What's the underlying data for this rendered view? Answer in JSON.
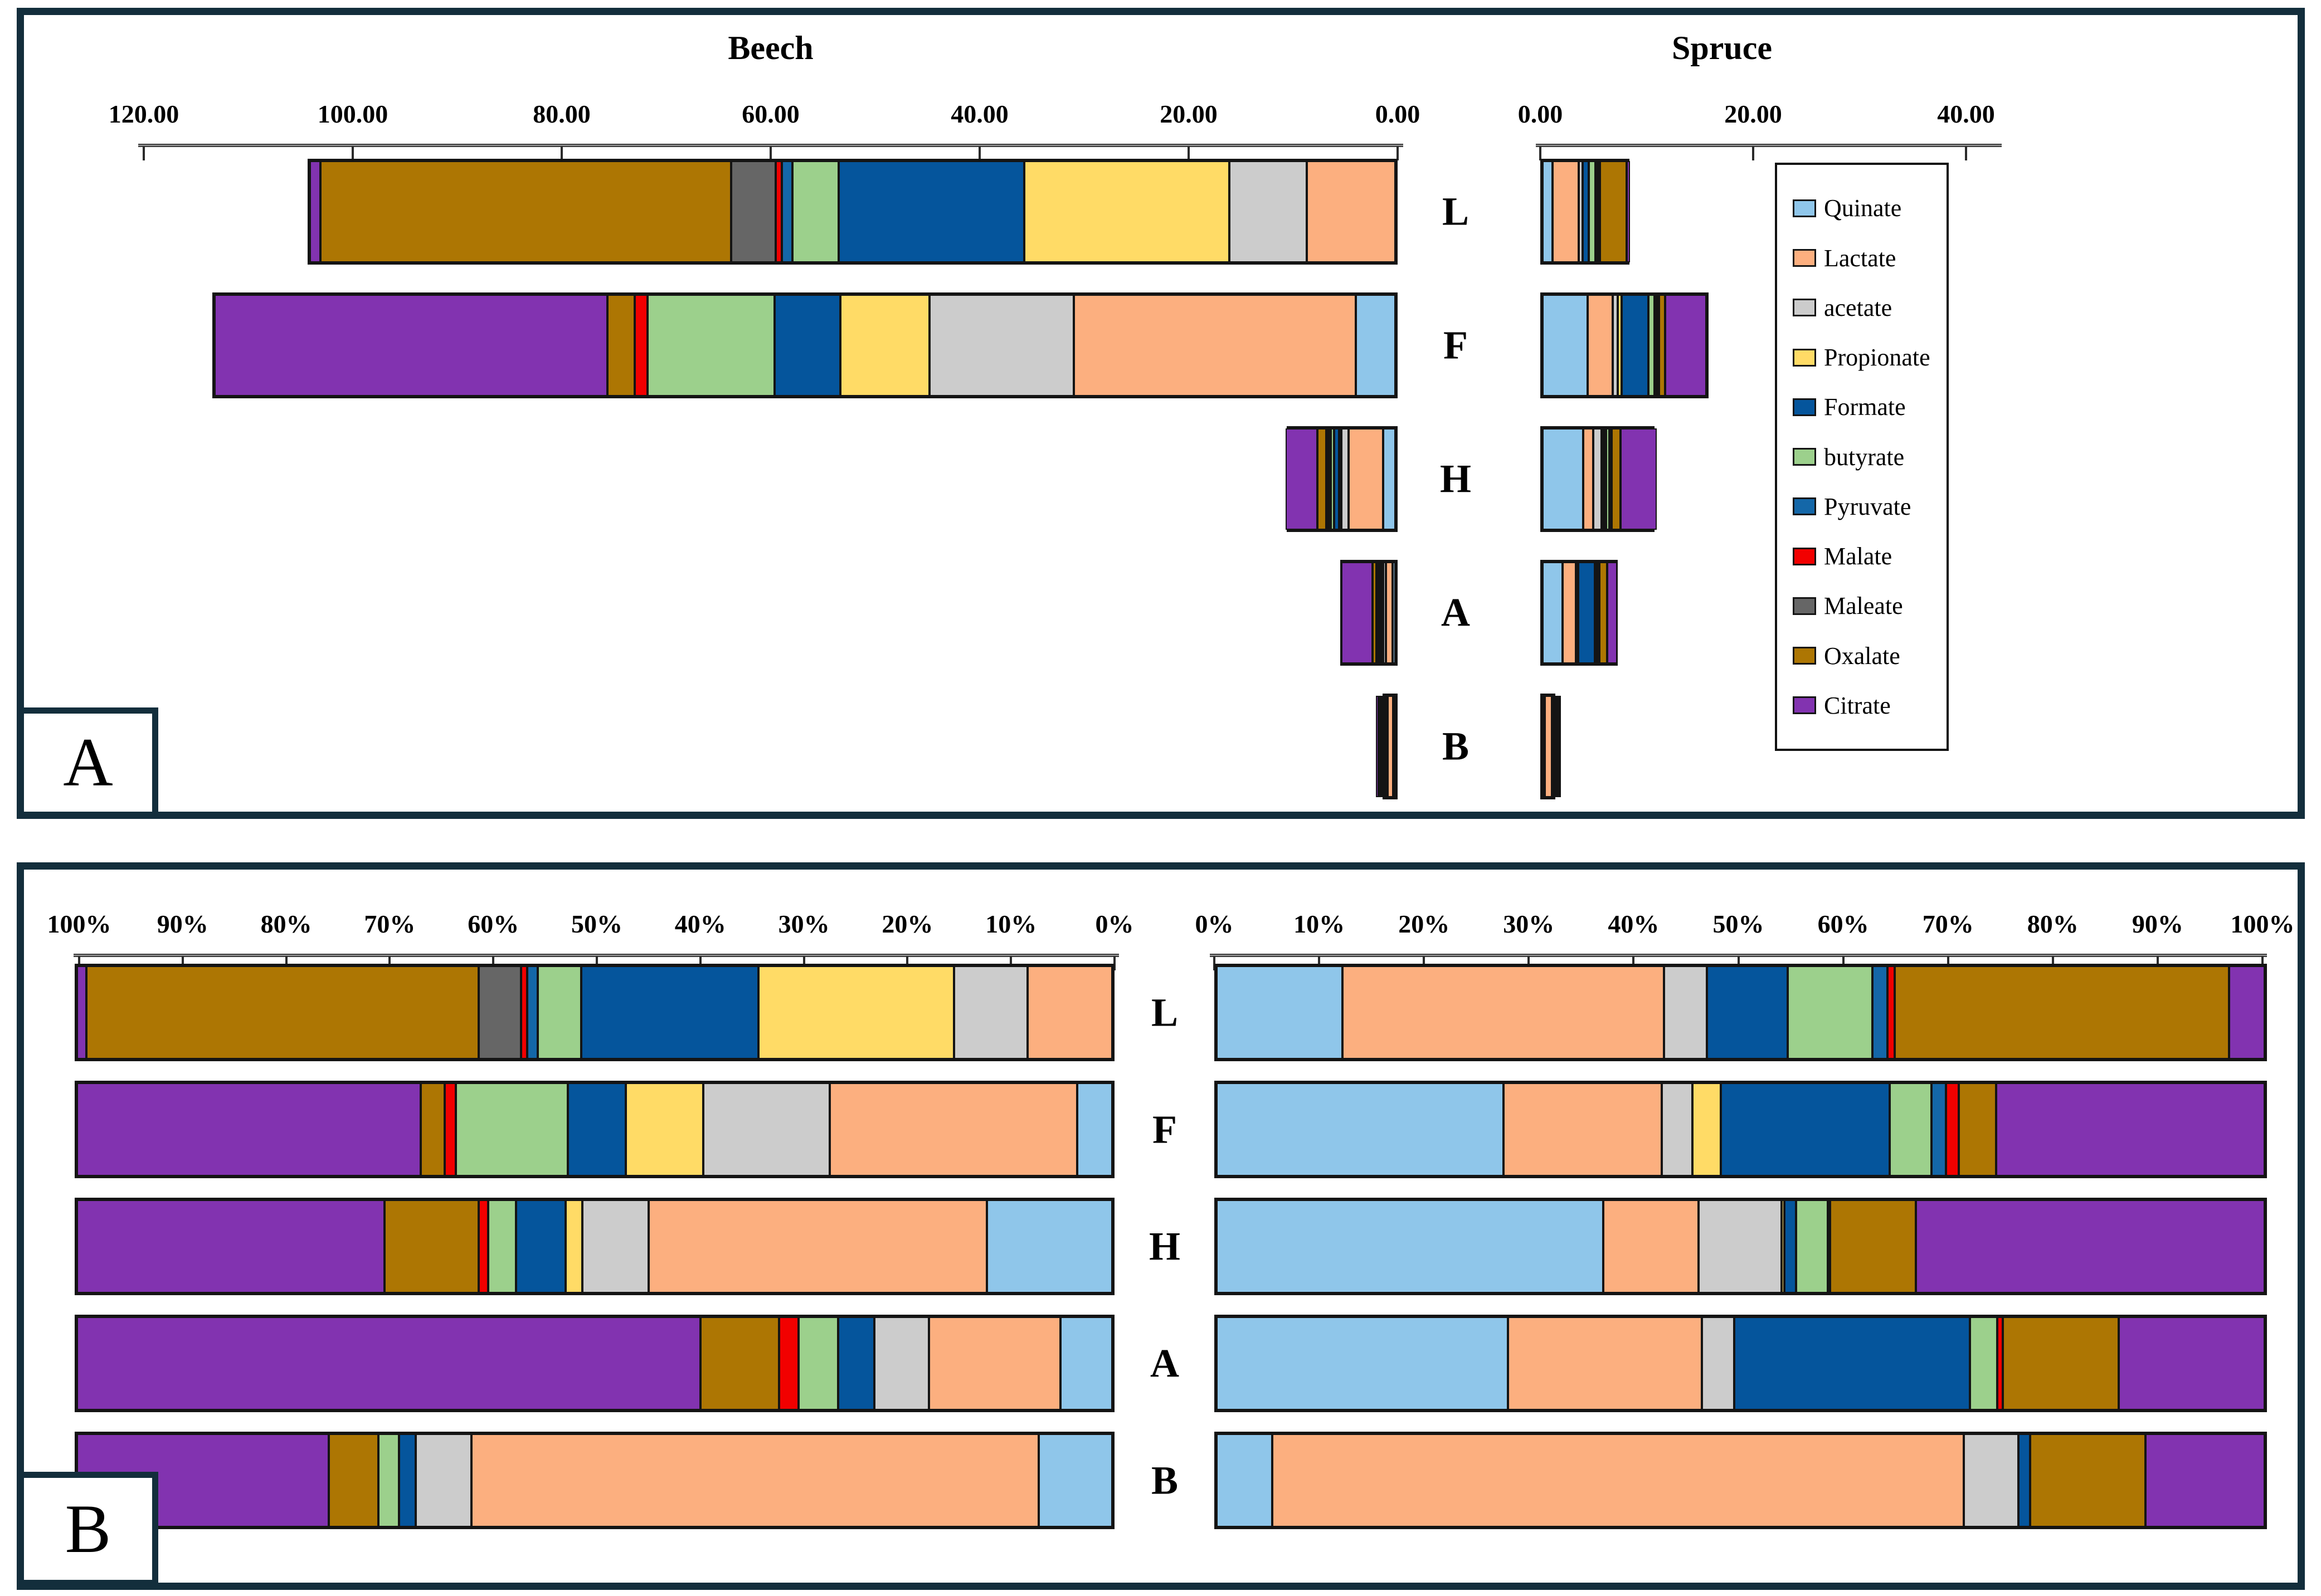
{
  "figure": {
    "panel_a_label": "A",
    "panel_b_label": "B",
    "beech_title": "Beech",
    "spruce_title": "Spruce"
  },
  "horizons": [
    "L",
    "F",
    "H",
    "A",
    "B"
  ],
  "series_order": [
    "Quinate",
    "Lactate",
    "acetate",
    "Propionate",
    "Formate",
    "butyrate",
    "Pyruvate",
    "Malate",
    "Maleate",
    "Oxalate",
    "Citrate"
  ],
  "colors": {
    "Quinate": "#8FC6EA",
    "Lactate": "#FCAF7F",
    "acetate": "#CCCCCC",
    "Propionate": "#FFDB66",
    "Formate": "#05559C",
    "butyrate": "#9CD08C",
    "Pyruvate": "#1467A8",
    "Malate": "#F20000",
    "Maleate": "#666666",
    "Oxalate": "#AD7603",
    "Citrate": "#8233B0"
  },
  "legend": {
    "items": [
      {
        "label": "Quinate",
        "color": "#8FC6EA"
      },
      {
        "label": "Lactate",
        "color": "#FCAF7F"
      },
      {
        "label": "acetate",
        "color": "#CCCCCC"
      },
      {
        "label": "Propionate",
        "color": "#FFDB66"
      },
      {
        "label": "Formate",
        "color": "#05559C"
      },
      {
        "label": "butyrate",
        "color": "#9CD08C"
      },
      {
        "label": "Pyruvate",
        "color": "#1467A8"
      },
      {
        "label": "Malate",
        "color": "#F20000"
      },
      {
        "label": "Maleate",
        "color": "#666666"
      },
      {
        "label": "Oxalate",
        "color": "#AD7603"
      },
      {
        "label": "Citrate",
        "color": "#8233B0"
      }
    ]
  },
  "axes": {
    "panel_a_beech_ticks": [
      "120.00",
      "100.00",
      "80.00",
      "60.00",
      "40.00",
      "20.00",
      "0.00"
    ],
    "panel_a_spruce_ticks": [
      "0.00",
      "20.00",
      "40.00"
    ],
    "panel_b_beech_ticks": [
      "100%",
      "90%",
      "80%",
      "70%",
      "60%",
      "50%",
      "40%",
      "30%",
      "20%",
      "10%",
      "0%"
    ],
    "panel_b_spruce_ticks": [
      "0%",
      "10%",
      "20%",
      "30%",
      "40%",
      "50%",
      "60%",
      "70%",
      "80%",
      "90%",
      "100%"
    ]
  },
  "chart_data": [
    {
      "id": "panel_a_beech",
      "type": "bar",
      "stacked": true,
      "orientation": "horizontal",
      "title": "Beech",
      "axis_reversed": true,
      "xlim": [
        0,
        120
      ],
      "tick_values": [
        120,
        100,
        80,
        60,
        40,
        20,
        0
      ],
      "categories": [
        "L",
        "F",
        "H",
        "A",
        "B"
      ],
      "series": [
        {
          "name": "Quinate",
          "values": [
            0,
            3.8,
            1.2,
            0.25,
            0.05
          ]
        },
        {
          "name": "Lactate",
          "values": [
            8.5,
            27.0,
            3.3,
            0.65,
            0.55
          ]
        },
        {
          "name": "acetate",
          "values": [
            7.4,
            13.8,
            0.65,
            0.25,
            0.05
          ]
        },
        {
          "name": "Propionate",
          "values": [
            19.6,
            8.5,
            0.15,
            0,
            0
          ]
        },
        {
          "name": "Formate",
          "values": [
            17.8,
            6.3,
            0.5,
            0.2,
            0.02
          ]
        },
        {
          "name": "butyrate",
          "values": [
            4.4,
            12.2,
            0.3,
            0.2,
            0.02
          ]
        },
        {
          "name": "Pyruvate",
          "values": [
            1.0,
            0,
            0.1,
            0,
            0
          ]
        },
        {
          "name": "Malate",
          "values": [
            0.6,
            1.2,
            0.1,
            0.1,
            0
          ]
        },
        {
          "name": "Maleate",
          "values": [
            4.3,
            0,
            0,
            0,
            0
          ]
        },
        {
          "name": "Oxalate",
          "values": [
            39.3,
            2.6,
            0.9,
            0.4,
            0.06
          ]
        },
        {
          "name": "Citrate",
          "values": [
            1.0,
            37.6,
            3.0,
            3.0,
            0.25
          ]
        }
      ]
    },
    {
      "id": "panel_a_spruce",
      "type": "bar",
      "stacked": true,
      "orientation": "horizontal",
      "title": "Spruce",
      "axis_reversed": false,
      "xlim": [
        0,
        40
      ],
      "tick_values": [
        0,
        20,
        40
      ],
      "categories": [
        "L",
        "F",
        "H",
        "A",
        "B"
      ],
      "series": [
        {
          "name": "Quinate",
          "values": [
            0.95,
            4.25,
            3.8,
            1.9,
            0.05
          ]
        },
        {
          "name": "Lactate",
          "values": [
            2.45,
            2.35,
            0.95,
            1.25,
            0.66
          ]
        },
        {
          "name": "acetate",
          "values": [
            0.35,
            0.45,
            0.8,
            0.2,
            0.05
          ]
        },
        {
          "name": "Propionate",
          "values": [
            0,
            0.4,
            0.05,
            0,
            0
          ]
        },
        {
          "name": "Formate",
          "values": [
            0.6,
            2.5,
            0.1,
            1.55,
            0.02
          ]
        },
        {
          "name": "butyrate",
          "values": [
            0.65,
            0.6,
            0.3,
            0.2,
            0
          ]
        },
        {
          "name": "Pyruvate",
          "values": [
            0.1,
            0.2,
            0,
            0,
            0
          ]
        },
        {
          "name": "Malate",
          "values": [
            0.05,
            0.2,
            0.05,
            0.05,
            0
          ]
        },
        {
          "name": "Maleate",
          "values": [
            0,
            0,
            0,
            0,
            0
          ]
        },
        {
          "name": "Oxalate",
          "values": [
            2.5,
            0.55,
            0.85,
            0.75,
            0.1
          ]
        },
        {
          "name": "Citrate",
          "values": [
            0.3,
            3.9,
            3.4,
            0.95,
            0.12
          ]
        }
      ]
    },
    {
      "id": "panel_b_beech",
      "type": "bar",
      "stacked": true,
      "orientation": "horizontal",
      "title": "Beech (%)",
      "axis_reversed": true,
      "xlim": [
        0,
        100
      ],
      "tick_values": [
        100,
        90,
        80,
        70,
        60,
        50,
        40,
        30,
        20,
        10,
        0
      ],
      "categories": [
        "L",
        "F",
        "H",
        "A",
        "B"
      ],
      "series": [
        {
          "name": "Quinate",
          "values": [
            0,
            3.4,
            12.1,
            5.0,
            7.1
          ]
        },
        {
          "name": "Lactate",
          "values": [
            8.2,
            23.9,
            32.7,
            12.7,
            54.8
          ]
        },
        {
          "name": "acetate",
          "values": [
            7.1,
            12.2,
            6.4,
            5.3,
            5.4
          ]
        },
        {
          "name": "Propionate",
          "values": [
            18.9,
            7.5,
            1.6,
            0,
            0
          ]
        },
        {
          "name": "Formate",
          "values": [
            17.1,
            5.6,
            4.8,
            3.5,
            1.6
          ]
        },
        {
          "name": "butyrate",
          "values": [
            4.2,
            10.8,
            2.7,
            3.8,
            2.0
          ]
        },
        {
          "name": "Pyruvate",
          "values": [
            1.0,
            0,
            0,
            0,
            0
          ]
        },
        {
          "name": "Malate",
          "values": [
            0.6,
            1.1,
            0.9,
            1.9,
            0
          ]
        },
        {
          "name": "Maleate",
          "values": [
            4.1,
            0,
            0,
            0,
            0
          ]
        },
        {
          "name": "Oxalate",
          "values": [
            37.9,
            2.3,
            9.1,
            7.6,
            4.8
          ]
        },
        {
          "name": "Citrate",
          "values": [
            0.9,
            33.2,
            29.7,
            60.2,
            24.3
          ]
        }
      ]
    },
    {
      "id": "panel_b_spruce",
      "type": "bar",
      "stacked": true,
      "orientation": "horizontal",
      "title": "Spruce (%)",
      "axis_reversed": false,
      "xlim": [
        0,
        100
      ],
      "tick_values": [
        0,
        10,
        20,
        30,
        40,
        50,
        60,
        70,
        80,
        90,
        100
      ],
      "categories": [
        "L",
        "F",
        "H",
        "A",
        "B"
      ],
      "series": [
        {
          "name": "Quinate",
          "values": [
            12.0,
            27.4,
            36.9,
            27.8,
            5.3
          ]
        },
        {
          "name": "Lactate",
          "values": [
            30.7,
            15.1,
            9.1,
            18.5,
            66.0
          ]
        },
        {
          "name": "acetate",
          "values": [
            4.1,
            2.9,
            7.9,
            3.1,
            5.2
          ]
        },
        {
          "name": "Propionate",
          "values": [
            0,
            2.7,
            0.3,
            0,
            0
          ]
        },
        {
          "name": "Formate",
          "values": [
            7.7,
            16.1,
            1.1,
            22.5,
            1.1
          ]
        },
        {
          "name": "butyrate",
          "values": [
            8.1,
            4.0,
            3.0,
            2.6,
            0
          ]
        },
        {
          "name": "Pyruvate",
          "values": [
            1.4,
            1.4,
            0,
            0,
            0
          ]
        },
        {
          "name": "Malate",
          "values": [
            0.7,
            1.2,
            0.2,
            0.5,
            0
          ]
        },
        {
          "name": "Maleate",
          "values": [
            0,
            0,
            0,
            0,
            0
          ]
        },
        {
          "name": "Oxalate",
          "values": [
            31.9,
            3.6,
            8.2,
            11.1,
            11.0
          ]
        },
        {
          "name": "Citrate",
          "values": [
            3.4,
            25.6,
            33.3,
            13.9,
            11.4
          ]
        }
      ]
    }
  ]
}
